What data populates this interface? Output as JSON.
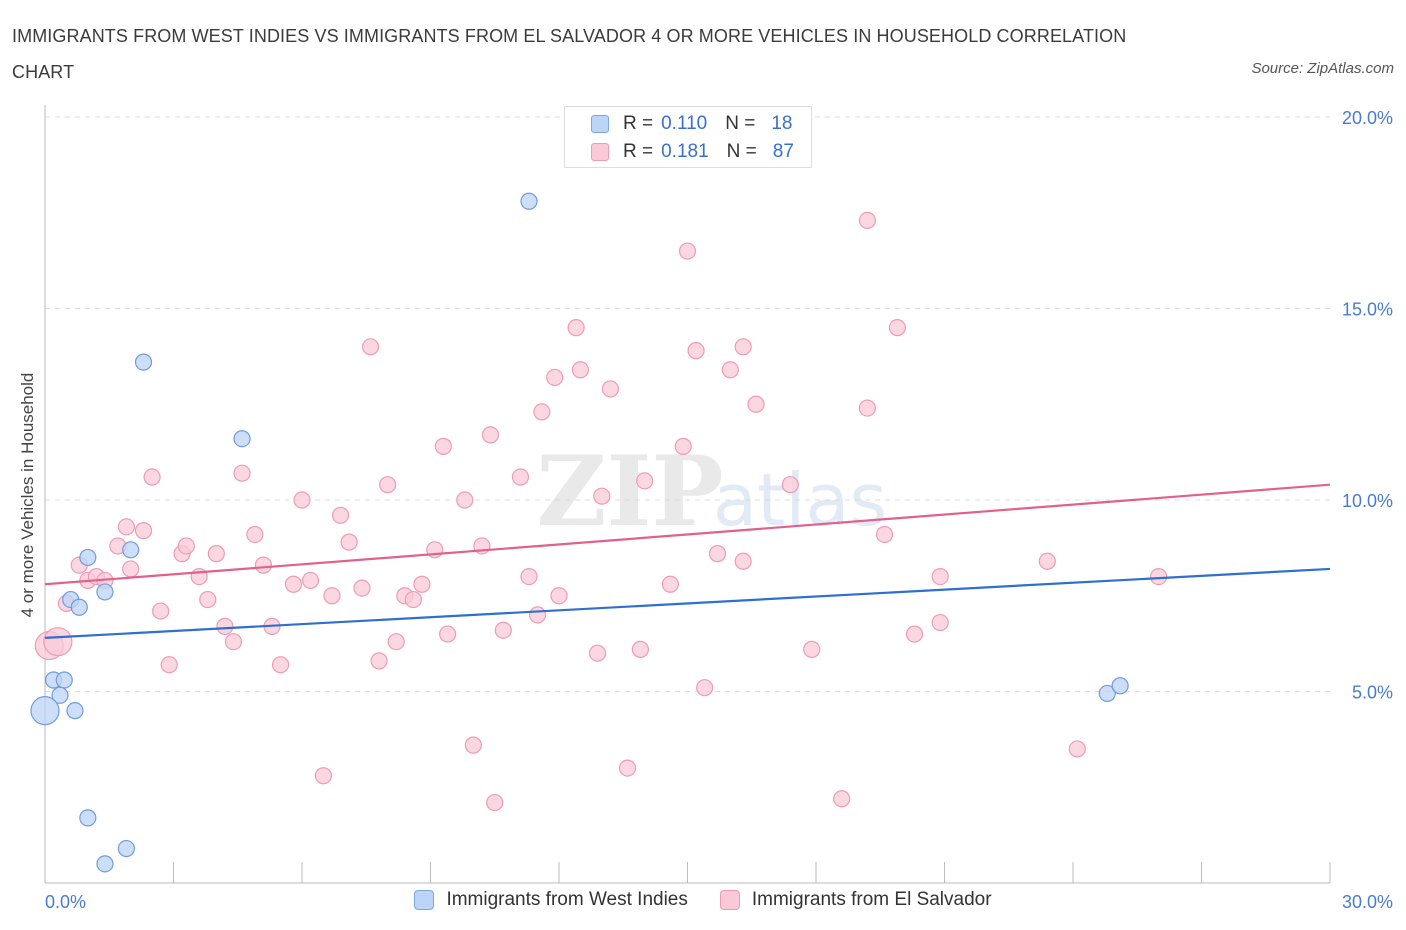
{
  "header": {
    "title": "IMMIGRANTS FROM WEST INDIES VS IMMIGRANTS FROM EL SALVADOR 4 OR MORE VEHICLES IN HOUSEHOLD CORRELATION CHART",
    "source": "Source: ZipAtlas.com"
  },
  "watermark": {
    "zip": "ZIP",
    "atlas": "atlas"
  },
  "colors": {
    "blue_fill": "#bcd4f6",
    "blue_stroke": "#6f9be0",
    "blue_line": "#2f6fce",
    "pink_fill": "#f9c9d8",
    "pink_stroke": "#ee9bb6",
    "pink_line": "#e2608d",
    "tick_text": "#4a7bd0",
    "grid": "#dcdcdc"
  },
  "legend": {
    "rows": [
      {
        "r_label": "R =",
        "r_value": "0.110",
        "n_label": "N =",
        "n_value": "18"
      },
      {
        "r_label": "R =",
        "r_value": "0.181",
        "n_label": "N =",
        "n_value": "87"
      }
    ]
  },
  "bottom_legend": {
    "series_a": "Immigrants from West Indies",
    "series_b": "Immigrants from El Salvador"
  },
  "chart_data": {
    "type": "scatter",
    "title": "IMMIGRANTS FROM WEST INDIES VS IMMIGRANTS FROM EL SALVADOR 4 OR MORE VEHICLES IN HOUSEHOLD CORRELATION CHART",
    "xlabel": "",
    "ylabel": "4 or more Vehicles in Household",
    "xlim": [
      0,
      30
    ],
    "ylim": [
      0,
      20
    ],
    "x_tick_labels": [
      "0.0%",
      "30.0%"
    ],
    "y_ticks": [
      5,
      10,
      15,
      20
    ],
    "y_tick_labels": [
      "5.0%",
      "10.0%",
      "15.0%",
      "20.0%"
    ],
    "grid": "horizontal dashed",
    "legend_placement": "top-center",
    "series": [
      {
        "name": "Immigrants from West Indies",
        "color": "blue",
        "R": 0.11,
        "N": 18,
        "trend": {
          "x": [
            0,
            30
          ],
          "y": [
            6.4,
            8.2
          ]
        },
        "points": [
          {
            "x": 11.3,
            "y": 17.8
          },
          {
            "x": 2.3,
            "y": 13.6
          },
          {
            "x": 4.6,
            "y": 11.6
          },
          {
            "x": 1.0,
            "y": 8.5
          },
          {
            "x": 2.0,
            "y": 8.7
          },
          {
            "x": 0.6,
            "y": 7.4
          },
          {
            "x": 0.8,
            "y": 7.2
          },
          {
            "x": 1.4,
            "y": 7.6
          },
          {
            "x": 0.2,
            "y": 5.3
          },
          {
            "x": 0.45,
            "y": 5.3
          },
          {
            "x": 0.35,
            "y": 4.9
          },
          {
            "x": 0.0,
            "y": 4.5
          },
          {
            "x": 0.7,
            "y": 4.5
          },
          {
            "x": 1.0,
            "y": 1.7
          },
          {
            "x": 1.9,
            "y": 0.9
          },
          {
            "x": 1.4,
            "y": 0.5
          },
          {
            "x": 24.8,
            "y": 4.95
          },
          {
            "x": 25.1,
            "y": 5.15
          }
        ]
      },
      {
        "name": "Immigrants from El Salvador",
        "color": "pink",
        "R": 0.181,
        "N": 87,
        "trend": {
          "x": [
            0,
            30
          ],
          "y": [
            7.8,
            10.4
          ]
        },
        "points": [
          {
            "x": 0.1,
            "y": 6.2
          },
          {
            "x": 0.3,
            "y": 6.3
          },
          {
            "x": 0.5,
            "y": 7.3
          },
          {
            "x": 0.8,
            "y": 8.3
          },
          {
            "x": 1.0,
            "y": 7.9
          },
          {
            "x": 1.2,
            "y": 8.0
          },
          {
            "x": 1.4,
            "y": 7.9
          },
          {
            "x": 1.7,
            "y": 8.8
          },
          {
            "x": 1.9,
            "y": 9.3
          },
          {
            "x": 2.0,
            "y": 8.2
          },
          {
            "x": 2.3,
            "y": 9.2
          },
          {
            "x": 2.5,
            "y": 10.6
          },
          {
            "x": 2.7,
            "y": 7.1
          },
          {
            "x": 2.9,
            "y": 5.7
          },
          {
            "x": 3.2,
            "y": 8.6
          },
          {
            "x": 3.3,
            "y": 8.8
          },
          {
            "x": 3.6,
            "y": 8.0
          },
          {
            "x": 3.8,
            "y": 7.4
          },
          {
            "x": 4.0,
            "y": 8.6
          },
          {
            "x": 4.2,
            "y": 6.7
          },
          {
            "x": 4.4,
            "y": 6.3
          },
          {
            "x": 4.6,
            "y": 10.7
          },
          {
            "x": 4.9,
            "y": 9.1
          },
          {
            "x": 5.1,
            "y": 8.3
          },
          {
            "x": 5.3,
            "y": 6.7
          },
          {
            "x": 5.5,
            "y": 5.7
          },
          {
            "x": 5.8,
            "y": 7.8
          },
          {
            "x": 6.0,
            "y": 10.0
          },
          {
            "x": 6.2,
            "y": 7.9
          },
          {
            "x": 6.5,
            "y": 2.8
          },
          {
            "x": 6.7,
            "y": 7.5
          },
          {
            "x": 6.9,
            "y": 9.6
          },
          {
            "x": 7.1,
            "y": 8.9
          },
          {
            "x": 7.4,
            "y": 7.7
          },
          {
            "x": 7.6,
            "y": 14.0
          },
          {
            "x": 7.8,
            "y": 5.8
          },
          {
            "x": 8.0,
            "y": 10.4
          },
          {
            "x": 8.2,
            "y": 6.3
          },
          {
            "x": 8.4,
            "y": 7.5
          },
          {
            "x": 8.6,
            "y": 7.4
          },
          {
            "x": 8.8,
            "y": 7.8
          },
          {
            "x": 9.1,
            "y": 8.7
          },
          {
            "x": 9.3,
            "y": 11.4
          },
          {
            "x": 9.4,
            "y": 6.5
          },
          {
            "x": 9.8,
            "y": 10.0
          },
          {
            "x": 10.0,
            "y": 3.6
          },
          {
            "x": 10.2,
            "y": 8.8
          },
          {
            "x": 10.4,
            "y": 11.7
          },
          {
            "x": 10.5,
            "y": 2.1
          },
          {
            "x": 10.7,
            "y": 6.6
          },
          {
            "x": 11.1,
            "y": 10.6
          },
          {
            "x": 11.3,
            "y": 8.0
          },
          {
            "x": 11.5,
            "y": 7.0
          },
          {
            "x": 11.6,
            "y": 12.3
          },
          {
            "x": 11.9,
            "y": 13.2
          },
          {
            "x": 12.0,
            "y": 7.5
          },
          {
            "x": 12.4,
            "y": 14.5
          },
          {
            "x": 12.5,
            "y": 13.4
          },
          {
            "x": 12.9,
            "y": 6.0
          },
          {
            "x": 13.0,
            "y": 10.1
          },
          {
            "x": 13.2,
            "y": 12.9
          },
          {
            "x": 13.6,
            "y": 3.0
          },
          {
            "x": 13.9,
            "y": 6.1
          },
          {
            "x": 14.0,
            "y": 10.5
          },
          {
            "x": 14.6,
            "y": 7.8
          },
          {
            "x": 14.9,
            "y": 11.4
          },
          {
            "x": 15.0,
            "y": 16.5
          },
          {
            "x": 15.2,
            "y": 13.9
          },
          {
            "x": 15.4,
            "y": 5.1
          },
          {
            "x": 15.7,
            "y": 8.6
          },
          {
            "x": 16.0,
            "y": 13.4
          },
          {
            "x": 16.3,
            "y": 14.0
          },
          {
            "x": 16.3,
            "y": 8.4
          },
          {
            "x": 16.6,
            "y": 12.5
          },
          {
            "x": 17.4,
            "y": 10.4
          },
          {
            "x": 17.9,
            "y": 6.1
          },
          {
            "x": 18.6,
            "y": 2.2
          },
          {
            "x": 19.2,
            "y": 17.3
          },
          {
            "x": 19.2,
            "y": 12.4
          },
          {
            "x": 19.6,
            "y": 9.1
          },
          {
            "x": 19.9,
            "y": 14.5
          },
          {
            "x": 20.3,
            "y": 6.5
          },
          {
            "x": 20.9,
            "y": 8.0
          },
          {
            "x": 20.9,
            "y": 6.8
          },
          {
            "x": 23.4,
            "y": 8.4
          },
          {
            "x": 24.1,
            "y": 3.5
          },
          {
            "x": 26.0,
            "y": 8.0
          }
        ]
      }
    ]
  }
}
